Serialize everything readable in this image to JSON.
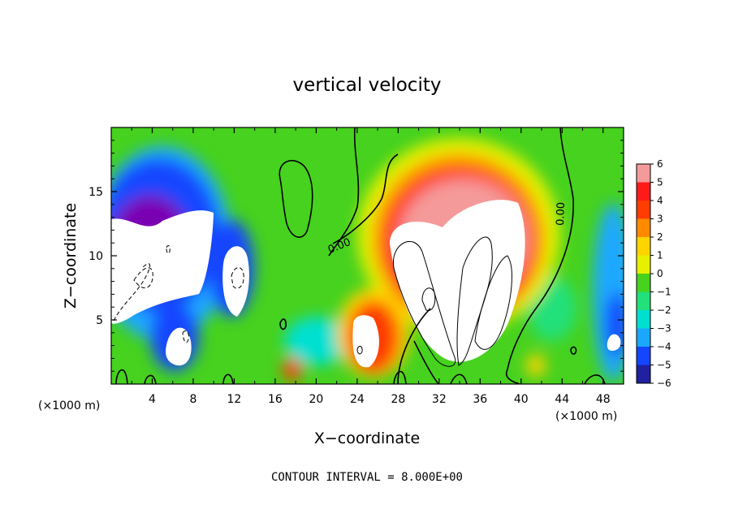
{
  "chart_data": {
    "type": "heatmap",
    "title": "vertical velocity",
    "xlabel": "X−coordinate",
    "ylabel": "Z−coordinate",
    "x_units": "(×1000 m)",
    "x_units_right": "(×1000 m)",
    "xlim": [
      0,
      50
    ],
    "ylim": [
      0,
      20
    ],
    "xticks": [
      4,
      8,
      12,
      16,
      20,
      24,
      28,
      32,
      36,
      40,
      44,
      48
    ],
    "xtick_labels": [
      "4",
      "8",
      "12",
      "16",
      "20",
      "24",
      "28",
      "32",
      "36",
      "40",
      "44",
      "48"
    ],
    "yticks": [
      5,
      10,
      15
    ],
    "ytick_labels": [
      "5",
      "10",
      "15"
    ],
    "colorbar": {
      "min": -6,
      "max": 6,
      "labels": [
        "6",
        "5",
        "4",
        "3",
        "2",
        "1",
        "0",
        "−1",
        "−2",
        "−3",
        "−4",
        "−5",
        "−6"
      ],
      "values": [
        6,
        5,
        4,
        3,
        2,
        1,
        0,
        -1,
        -2,
        -3,
        -4,
        -5,
        -6
      ],
      "colors": [
        "#f59a9a",
        "#ff1a1a",
        "#ff3d00",
        "#ff8a00",
        "#ffd400",
        "#e6f000",
        "#46d21e",
        "#22e07a",
        "#00e0d0",
        "#1aa8ff",
        "#1446ff",
        "#2020a0",
        "#7a00b4"
      ]
    },
    "contour_labels": [
      "0.00",
      "0.00"
    ],
    "footer": "CONTOUR INTERVAL = 8.000E+00",
    "features": [
      {
        "kind": "updraft-core",
        "x": 34,
        "z": 9.5,
        "value": 8
      },
      {
        "kind": "updraft",
        "x": 25,
        "z": 4,
        "value": 6
      },
      {
        "kind": "downdraft-core",
        "x": 4,
        "z": 10,
        "value": -8
      },
      {
        "kind": "downdraft",
        "x": 12,
        "z": 8.5,
        "value": -6
      },
      {
        "kind": "downdraft",
        "x": 7,
        "z": 3.5,
        "value": -6
      },
      {
        "kind": "downdraft",
        "x": 49,
        "z": 3,
        "value": -6
      }
    ]
  }
}
